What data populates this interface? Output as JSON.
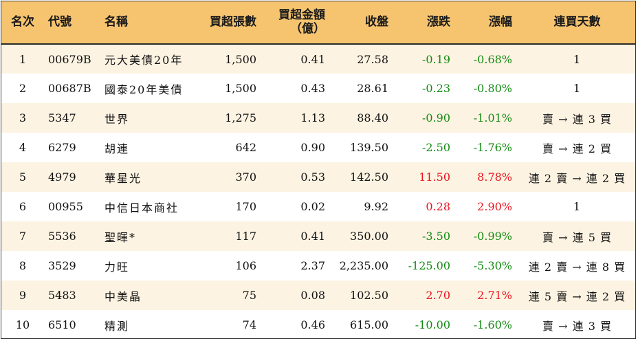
{
  "headers": {
    "rank": "名次",
    "code": "代號",
    "name": "名稱",
    "net_buy_lots": "買超張數",
    "net_buy_amount_line1": "買超金額",
    "net_buy_amount_line2": "（億）",
    "close": "收盤",
    "change": "漲跌",
    "change_pct": "漲幅",
    "consecutive_days": "連買天數"
  },
  "colors": {
    "header_bg": "#f6c46f",
    "odd_row_bg": "#fdf3e2",
    "positive": "#e8131d",
    "negative": "#128a12"
  },
  "rows": [
    {
      "rank": "1",
      "code": "00679B",
      "name": "元大美債20年",
      "lots": "1,500",
      "amount": "0.41",
      "close": "27.58",
      "change": "-0.19",
      "pct": "-0.68%",
      "streak": "1",
      "dir": "down"
    },
    {
      "rank": "2",
      "code": "00687B",
      "name": "國泰20年美債",
      "lots": "1,500",
      "amount": "0.43",
      "close": "28.61",
      "change": "-0.23",
      "pct": "-0.80%",
      "streak": "1",
      "dir": "down"
    },
    {
      "rank": "3",
      "code": "5347",
      "name": "世界",
      "lots": "1,275",
      "amount": "1.13",
      "close": "88.40",
      "change": "-0.90",
      "pct": "-1.01%",
      "streak": "賣 → 連 3 買",
      "dir": "down"
    },
    {
      "rank": "4",
      "code": "6279",
      "name": "胡連",
      "lots": "642",
      "amount": "0.90",
      "close": "139.50",
      "change": "-2.50",
      "pct": "-1.76%",
      "streak": "賣 → 連 2 買",
      "dir": "down"
    },
    {
      "rank": "5",
      "code": "4979",
      "name": "華星光",
      "lots": "370",
      "amount": "0.53",
      "close": "142.50",
      "change": "11.50",
      "pct": "8.78%",
      "streak": "連 2 賣 → 連 2 買",
      "dir": "up"
    },
    {
      "rank": "6",
      "code": "00955",
      "name": "中信日本商社",
      "lots": "170",
      "amount": "0.02",
      "close": "9.92",
      "change": "0.28",
      "pct": "2.90%",
      "streak": "1",
      "dir": "up"
    },
    {
      "rank": "7",
      "code": "5536",
      "name": "聖暉*",
      "lots": "117",
      "amount": "0.41",
      "close": "350.00",
      "change": "-3.50",
      "pct": "-0.99%",
      "streak": "賣 → 連 5 買",
      "dir": "down"
    },
    {
      "rank": "8",
      "code": "3529",
      "name": "力旺",
      "lots": "106",
      "amount": "2.37",
      "close": "2,235.00",
      "change": "-125.00",
      "pct": "-5.30%",
      "streak": "連 2 賣 → 連 8 買",
      "dir": "down"
    },
    {
      "rank": "9",
      "code": "5483",
      "name": "中美晶",
      "lots": "75",
      "amount": "0.08",
      "close": "102.50",
      "change": "2.70",
      "pct": "2.71%",
      "streak": "連 5 賣 → 連 2 買",
      "dir": "up"
    },
    {
      "rank": "10",
      "code": "6510",
      "name": "精測",
      "lots": "74",
      "amount": "0.46",
      "close": "615.00",
      "change": "-10.00",
      "pct": "-1.60%",
      "streak": "賣 → 連 3 買",
      "dir": "down"
    }
  ]
}
